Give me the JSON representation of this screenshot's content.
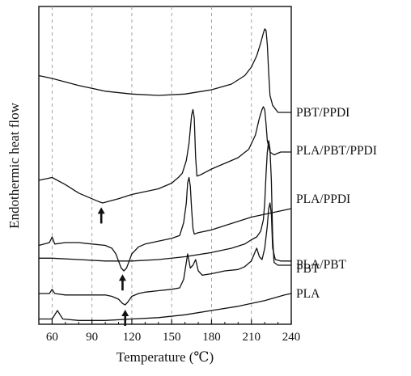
{
  "chart_data": {
    "type": "line",
    "title": "",
    "xlabel": "Temperature (℃)",
    "ylabel": "Endothermic heat flow",
    "xlim": [
      50,
      240
    ],
    "x_ticks": [
      60,
      90,
      120,
      150,
      180,
      210,
      240
    ],
    "y_ticks_shown": false,
    "grid": "vertical dashed",
    "legend": "labels at right end of each curve",
    "line_color": "#111111",
    "series": [
      {
        "name": "PBT/PPDI",
        "points": [
          [
            50,
            21
          ],
          [
            60,
            22
          ],
          [
            80,
            24.5
          ],
          [
            100,
            26.5
          ],
          [
            120,
            27.5
          ],
          [
            140,
            28
          ],
          [
            160,
            27.5
          ],
          [
            180,
            26
          ],
          [
            195,
            24
          ],
          [
            205,
            21
          ],
          [
            210,
            18
          ],
          [
            214,
            14
          ],
          [
            217,
            9.5
          ],
          [
            219,
            6
          ],
          [
            220,
            4.5
          ],
          [
            221,
            5
          ],
          [
            222,
            10
          ],
          [
            223,
            20
          ],
          [
            224,
            28
          ],
          [
            226,
            31.5
          ],
          [
            230,
            34
          ],
          [
            236,
            34
          ],
          [
            240,
            34
          ]
        ]
      },
      {
        "name": "PLA/PBT/PPDI",
        "points": [
          [
            50,
            58
          ],
          [
            60,
            57
          ],
          [
            70,
            59.5
          ],
          [
            80,
            62.5
          ],
          [
            90,
            64.5
          ],
          [
            95,
            65.5
          ],
          [
            98,
            66
          ],
          [
            102,
            65.5
          ],
          [
            110,
            64.5
          ],
          [
            120,
            63
          ],
          [
            130,
            62
          ],
          [
            140,
            61
          ],
          [
            150,
            59
          ],
          [
            155,
            57
          ],
          [
            158,
            55.5
          ],
          [
            161,
            51
          ],
          [
            163,
            45
          ],
          [
            165,
            35
          ],
          [
            166,
            33
          ],
          [
            167,
            36
          ],
          [
            168,
            50
          ],
          [
            169,
            56.5
          ],
          [
            172,
            56
          ],
          [
            180,
            54
          ],
          [
            190,
            52
          ],
          [
            200,
            50
          ],
          [
            208,
            47
          ],
          [
            213,
            42
          ],
          [
            216,
            36
          ],
          [
            218,
            33
          ],
          [
            219,
            32
          ],
          [
            220,
            33
          ],
          [
            221,
            38
          ],
          [
            222,
            44
          ],
          [
            224,
            48
          ],
          [
            227,
            49
          ],
          [
            232,
            48
          ],
          [
            236,
            48
          ],
          [
            240,
            48
          ]
        ]
      },
      {
        "name": "PLA/PPDI",
        "points": [
          [
            50,
            81
          ],
          [
            58,
            80
          ],
          [
            60,
            78
          ],
          [
            62,
            80.5
          ],
          [
            70,
            80
          ],
          [
            80,
            80
          ],
          [
            90,
            80.5
          ],
          [
            100,
            81
          ],
          [
            105,
            82
          ],
          [
            108,
            84
          ],
          [
            110,
            86.5
          ],
          [
            112,
            89
          ],
          [
            114,
            90
          ],
          [
            116,
            89
          ],
          [
            118,
            86.5
          ],
          [
            120,
            84
          ],
          [
            125,
            81.5
          ],
          [
            130,
            80.5
          ],
          [
            140,
            79.5
          ],
          [
            150,
            78.5
          ],
          [
            156,
            77.5
          ],
          [
            159,
            73
          ],
          [
            161,
            66
          ],
          [
            162,
            59
          ],
          [
            163,
            57
          ],
          [
            164,
            60
          ],
          [
            165,
            68
          ],
          [
            166,
            75
          ],
          [
            167,
            77
          ],
          [
            170,
            76.5
          ],
          [
            180,
            75.5
          ],
          [
            190,
            74
          ],
          [
            200,
            72.5
          ],
          [
            210,
            71
          ],
          [
            220,
            70
          ],
          [
            230,
            69
          ],
          [
            240,
            68
          ]
        ]
      },
      {
        "name": "PBT",
        "points": [
          [
            50,
            85.5
          ],
          [
            60,
            85.5
          ],
          [
            80,
            86
          ],
          [
            100,
            86.5
          ],
          [
            120,
            86.5
          ],
          [
            140,
            86
          ],
          [
            160,
            85
          ],
          [
            180,
            83.5
          ],
          [
            195,
            82
          ],
          [
            205,
            80.5
          ],
          [
            210,
            79
          ],
          [
            214,
            78
          ],
          [
            217,
            76
          ],
          [
            219,
            72
          ],
          [
            220,
            66
          ],
          [
            221,
            56
          ],
          [
            222,
            48
          ],
          [
            223,
            44
          ],
          [
            224,
            47
          ],
          [
            225,
            58
          ],
          [
            226,
            78
          ],
          [
            227,
            87
          ],
          [
            230,
            88
          ],
          [
            236,
            88
          ],
          [
            240,
            88
          ]
        ]
      },
      {
        "name": "PLA/PBT",
        "points": [
          [
            50,
            98
          ],
          [
            58,
            98
          ],
          [
            60,
            96.5
          ],
          [
            62,
            98
          ],
          [
            70,
            98.5
          ],
          [
            80,
            98.5
          ],
          [
            90,
            98.5
          ],
          [
            100,
            98.5
          ],
          [
            105,
            99
          ],
          [
            110,
            100
          ],
          [
            113,
            101.5
          ],
          [
            115,
            102
          ],
          [
            117,
            101
          ],
          [
            120,
            99
          ],
          [
            125,
            98
          ],
          [
            130,
            97.5
          ],
          [
            140,
            97
          ],
          [
            150,
            96.5
          ],
          [
            156,
            96
          ],
          [
            159,
            93
          ],
          [
            161,
            87
          ],
          [
            162,
            84
          ],
          [
            163,
            86.5
          ],
          [
            164,
            89
          ],
          [
            166,
            88
          ],
          [
            168,
            86
          ],
          [
            170,
            90
          ],
          [
            173,
            91.5
          ],
          [
            180,
            91
          ],
          [
            190,
            90
          ],
          [
            200,
            89.5
          ],
          [
            205,
            88.5
          ],
          [
            210,
            86.5
          ],
          [
            213,
            83
          ],
          [
            214,
            82
          ],
          [
            216,
            85
          ],
          [
            218,
            86
          ],
          [
            220,
            82
          ],
          [
            222,
            74
          ],
          [
            223,
            68
          ],
          [
            224,
            66
          ],
          [
            225,
            70
          ],
          [
            226,
            82
          ],
          [
            228,
            86
          ],
          [
            232,
            86.5
          ],
          [
            236,
            86.5
          ],
          [
            240,
            86.5
          ]
        ]
      },
      {
        "name": "PLA",
        "points": [
          [
            50,
            107
          ],
          [
            60,
            107
          ],
          [
            62,
            105.5
          ],
          [
            64,
            104
          ],
          [
            66,
            105.5
          ],
          [
            68,
            107
          ],
          [
            80,
            107.5
          ],
          [
            100,
            107.5
          ],
          [
            120,
            107
          ],
          [
            140,
            106.5
          ],
          [
            160,
            105.5
          ],
          [
            180,
            104
          ],
          [
            200,
            102.5
          ],
          [
            220,
            100.5
          ],
          [
            235,
            98.5
          ],
          [
            240,
            98
          ]
        ]
      }
    ],
    "annotations": [
      {
        "type": "arrow",
        "x": 97,
        "direction": "up"
      },
      {
        "type": "arrow",
        "x": 113,
        "direction": "up"
      },
      {
        "type": "arrow",
        "x": 115,
        "direction": "up"
      }
    ]
  }
}
